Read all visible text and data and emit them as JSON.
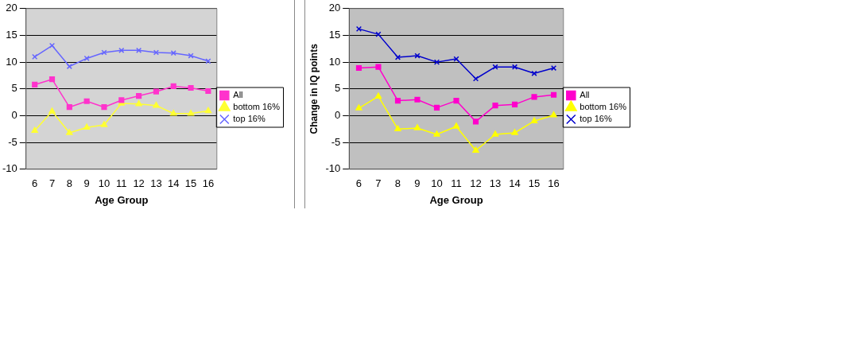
{
  "chart_data": [
    {
      "type": "line",
      "xlabel": "Age Group",
      "categories": [
        "6",
        "7",
        "8",
        "9",
        "10",
        "11",
        "12",
        "13",
        "14",
        "15",
        "16"
      ],
      "ylim": [
        -10,
        20
      ],
      "yticks": [
        -10,
        -5,
        0,
        5,
        10,
        15,
        20
      ],
      "grid": "y",
      "legend": "right",
      "series": [
        {
          "name": "All",
          "color": "#ff33cc",
          "marker": "square",
          "values": [
            5.8,
            6.8,
            1.6,
            2.7,
            1.6,
            2.9,
            3.7,
            4.5,
            5.5,
            5.2,
            4.6
          ]
        },
        {
          "name": "bottom 16%",
          "color": "#ffff33",
          "marker": "triangle",
          "values": [
            -2.8,
            0.8,
            -3.2,
            -2.2,
            -1.7,
            2.3,
            2.2,
            1.9,
            0.4,
            0.4,
            0.9
          ]
        },
        {
          "name": "top 16%",
          "color": "#6666ff",
          "marker": "cross",
          "values": [
            11.0,
            13.1,
            9.2,
            10.7,
            11.8,
            12.2,
            12.2,
            11.8,
            11.7,
            11.2,
            10.2
          ]
        }
      ]
    },
    {
      "type": "line",
      "xlabel": "Age Group",
      "ylabel": "Change in IQ points",
      "categories": [
        "6",
        "7",
        "8",
        "9",
        "10",
        "11",
        "12",
        "13",
        "14",
        "15",
        "16"
      ],
      "ylim": [
        -10,
        20
      ],
      "yticks": [
        -10,
        -5,
        0,
        5,
        10,
        15,
        20
      ],
      "grid": "y",
      "legend": "right",
      "series": [
        {
          "name": "All",
          "color": "#ff00cc",
          "marker": "square",
          "values": [
            8.9,
            9.1,
            2.8,
            3.0,
            1.5,
            2.8,
            -1.1,
            1.9,
            2.1,
            3.5,
            3.9
          ]
        },
        {
          "name": "bottom 16%",
          "color": "#ffff00",
          "marker": "triangle",
          "values": [
            1.4,
            3.6,
            -2.5,
            -2.3,
            -3.5,
            -2.0,
            -6.5,
            -3.5,
            -3.2,
            -1.0,
            0.1
          ]
        },
        {
          "name": "top 16%",
          "color": "#0000cc",
          "marker": "cross",
          "values": [
            16.2,
            15.2,
            10.9,
            11.2,
            10.0,
            10.6,
            6.9,
            9.1,
            9.1,
            7.9,
            8.9
          ]
        }
      ]
    }
  ]
}
